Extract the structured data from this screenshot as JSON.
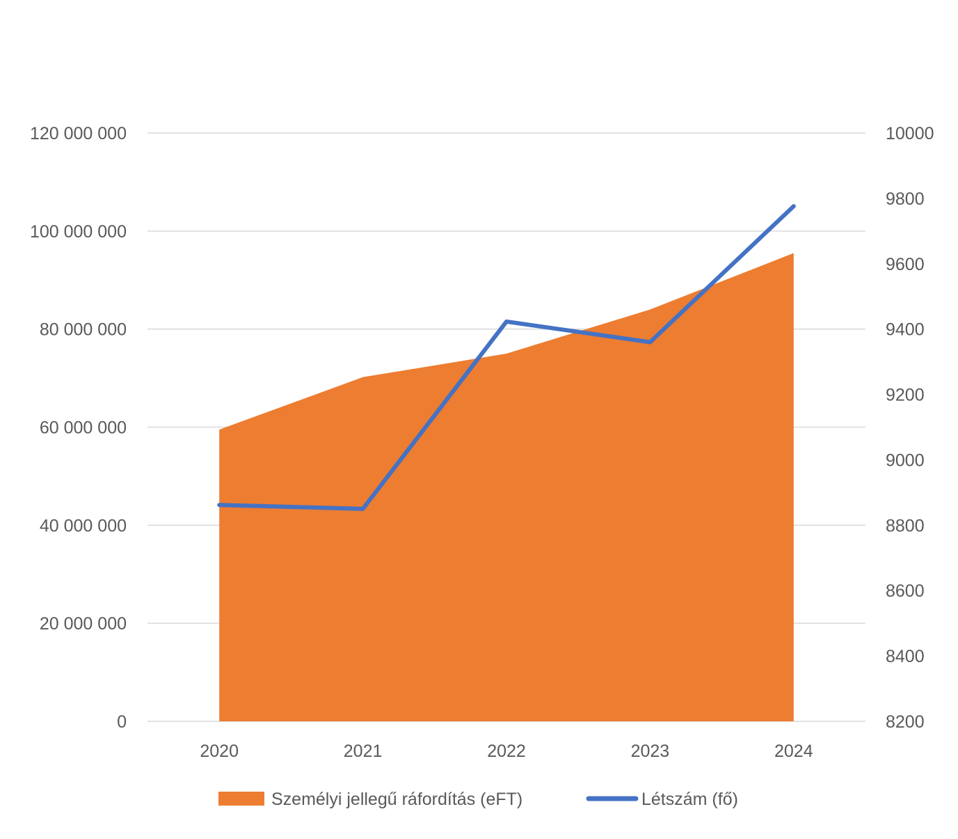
{
  "chart_data": {
    "type": "area",
    "title": "",
    "categories": [
      "2020",
      "2021",
      "2022",
      "2023",
      "2024"
    ],
    "series": [
      {
        "name": "Személyi jellegű ráfordítás (eFT)",
        "type": "area",
        "axis": "left",
        "color": "#ed7d31",
        "values": [
          59500000,
          70200000,
          75000000,
          84000000,
          95500000
        ]
      },
      {
        "name": "Létszám (fő)",
        "type": "line",
        "axis": "right",
        "color": "#4472c4",
        "values": [
          8862,
          8850,
          9423,
          9360,
          9776
        ]
      }
    ],
    "y_left": {
      "min": 0,
      "max": 120000000,
      "ticks": [
        0,
        20000000,
        40000000,
        60000000,
        80000000,
        100000000,
        120000000
      ],
      "tick_labels": [
        "0",
        "20 000 000",
        "40 000 000",
        "60 000 000",
        "80 000 000",
        "100 000 000",
        "120 000 000"
      ]
    },
    "y_right": {
      "min": 8200,
      "max": 10000,
      "ticks": [
        8200,
        8400,
        8600,
        8800,
        9000,
        9200,
        9400,
        9600,
        9800,
        10000
      ],
      "tick_labels": [
        "8200",
        "8400",
        "8600",
        "8800",
        "9000",
        "9200",
        "9400",
        "9600",
        "9800",
        "10000"
      ]
    },
    "grid": true,
    "legend_position": "bottom"
  }
}
